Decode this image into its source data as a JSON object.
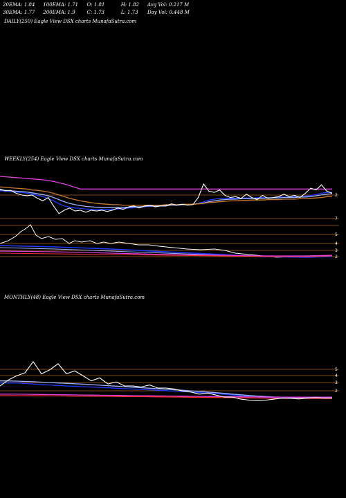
{
  "header": {
    "row1": [
      "20EMA: 1.84",
      "100EMA: 1.71",
      "O: 1.81",
      "H: 1.82",
      "Avg Vol: 0.217 M"
    ],
    "row2": [
      "30EMA: 1.77",
      "200EMA: 1.9",
      "C: 1.73",
      "L: 1.73",
      "Day Vol: 0.448  M"
    ]
  },
  "panels": {
    "daily": "DAILY(250) Eagle  View  DSX  charts MunafaSutra.com",
    "weekly": "WEEKLY(254) Eagle  View  DSX  charts MunafaSutra.com",
    "monthly": "MONTHLY(48) Eagle  View  DSX  charts MunafaSutra.com"
  },
  "colors": {
    "price": "#ffffff",
    "ema_blue": "#1e3cff",
    "ema_light": "#9fb4ff",
    "ema_orange": "#c87a2a",
    "ema_magenta": "#e040e0",
    "ema_red": "#ff3030",
    "level_line": "#b0601a"
  },
  "chart_data": [
    {
      "type": "line",
      "title": "WEEKLY(254) Eagle  View  DSX  charts MunafaSutra.com",
      "y_labels": [
        "2",
        "7",
        "5",
        "4",
        "3",
        "2"
      ],
      "series": [
        {
          "role": "price",
          "color": "#ffffff",
          "values": [
            2.0,
            1.96,
            1.97,
            1.9,
            1.86,
            1.84,
            1.86,
            1.78,
            1.72,
            1.8,
            1.6,
            1.42,
            1.5,
            1.55,
            1.48,
            1.5,
            1.45,
            1.5,
            1.48,
            1.5,
            1.47,
            1.5,
            1.55,
            1.52,
            1.58,
            1.6,
            1.55,
            1.6,
            1.62,
            1.58,
            1.6,
            1.6,
            1.65,
            1.62,
            1.64,
            1.62,
            1.63,
            1.8,
            2.12,
            1.95,
            1.92,
            1.98,
            1.85,
            1.8,
            1.82,
            1.78,
            1.88,
            1.8,
            1.75,
            1.85,
            1.78,
            1.8,
            1.82,
            1.88,
            1.82,
            1.85,
            1.8,
            1.9,
            2.02,
            1.98,
            2.1,
            1.95,
            1.9
          ]
        },
        {
          "role": "ema",
          "color": "#1e3cff",
          "values": [
            1.96,
            1.95,
            1.94,
            1.93,
            1.92,
            1.9,
            1.88,
            1.85,
            1.82,
            1.78,
            1.72,
            1.65,
            1.6,
            1.57,
            1.55,
            1.54,
            1.53,
            1.52,
            1.52,
            1.52,
            1.52,
            1.52,
            1.53,
            1.54,
            1.55,
            1.56,
            1.57,
            1.58,
            1.59,
            1.6,
            1.6,
            1.61,
            1.62,
            1.62,
            1.63,
            1.63,
            1.64,
            1.66,
            1.7,
            1.74,
            1.76,
            1.78,
            1.78,
            1.78,
            1.78,
            1.78,
            1.79,
            1.79,
            1.79,
            1.8,
            1.8,
            1.8,
            1.81,
            1.81,
            1.81,
            1.82,
            1.82,
            1.83,
            1.85,
            1.87,
            1.9,
            1.92,
            1.92
          ]
        },
        {
          "role": "ema",
          "color": "#9fb4ff",
          "values": [
            1.98,
            1.97,
            1.96,
            1.95,
            1.94,
            1.93,
            1.91,
            1.89,
            1.87,
            1.84,
            1.8,
            1.75,
            1.7,
            1.66,
            1.63,
            1.61,
            1.59,
            1.58,
            1.57,
            1.56,
            1.56,
            1.56,
            1.56,
            1.57,
            1.57,
            1.58,
            1.58,
            1.59,
            1.6,
            1.6,
            1.61,
            1.61,
            1.62,
            1.62,
            1.63,
            1.63,
            1.64,
            1.65,
            1.67,
            1.7,
            1.72,
            1.74,
            1.75,
            1.76,
            1.76,
            1.77,
            1.77,
            1.78,
            1.78,
            1.78,
            1.79,
            1.79,
            1.79,
            1.8,
            1.8,
            1.8,
            1.81,
            1.81,
            1.82,
            1.84,
            1.86,
            1.88,
            1.89
          ]
        },
        {
          "role": "ema",
          "color": "#c87a2a",
          "values": [
            2.05,
            2.04,
            2.03,
            2.02,
            2.01,
            2.0,
            1.98,
            1.97,
            1.95,
            1.93,
            1.9,
            1.86,
            1.82,
            1.78,
            1.75,
            1.72,
            1.7,
            1.68,
            1.66,
            1.65,
            1.64,
            1.63,
            1.63,
            1.62,
            1.62,
            1.62,
            1.62,
            1.62,
            1.62,
            1.62,
            1.62,
            1.63,
            1.63,
            1.63,
            1.64,
            1.64,
            1.64,
            1.65,
            1.66,
            1.68,
            1.69,
            1.7,
            1.71,
            1.72,
            1.72,
            1.73,
            1.73,
            1.74,
            1.74,
            1.74,
            1.75,
            1.75,
            1.75,
            1.76,
            1.76,
            1.76,
            1.77,
            1.77,
            1.78,
            1.79,
            1.8,
            1.82,
            1.83
          ]
        },
        {
          "role": "ema",
          "color": "#e040e0",
          "values": [
            2.3,
            2.29,
            2.28,
            2.27,
            2.26,
            2.25,
            2.24,
            2.23,
            2.22,
            2.2,
            2.18,
            2.15,
            2.12,
            2.08,
            2.04,
            2.0,
            2.0,
            2.0,
            2.0,
            2.0,
            2.0,
            2.0,
            2.0,
            2.0,
            2.0,
            2.0,
            2.0,
            2.0,
            2.0,
            2.0,
            2.0,
            2.0,
            2.0,
            2.0,
            2.0,
            2.0,
            2.0,
            2.0,
            2.0,
            2.0,
            2.0,
            2.0,
            2.0,
            2.0,
            2.0,
            2.0,
            2.0,
            2.0,
            2.0,
            2.0,
            2.0,
            2.0,
            2.0,
            2.0,
            2.0,
            2.0,
            2.0,
            2.0,
            2.0,
            2.0,
            2.0,
            2.0,
            2.0
          ]
        }
      ]
    },
    {
      "type": "line",
      "title": "MONTHLY(48) Eagle  View  DSX  charts MunafaSutra.com",
      "y_labels": [
        "5",
        "4",
        "3",
        "2"
      ],
      "series": [
        {
          "role": "price",
          "color": "#ffffff",
          "values": [
            3.0,
            3.6,
            4.0,
            4.3,
            5.4,
            4.2,
            4.6,
            5.2,
            4.2,
            4.5,
            4.0,
            3.5,
            3.8,
            3.2,
            3.4,
            3.0,
            3.0,
            2.9,
            3.1,
            2.8,
            2.8,
            2.7,
            2.5,
            2.4,
            2.2,
            2.3,
            2.1,
            1.9,
            1.9,
            1.7,
            1.6,
            1.55,
            1.6,
            1.7,
            1.8,
            1.78,
            1.72,
            1.8,
            1.85,
            1.8,
            1.8
          ]
        },
        {
          "role": "ema",
          "color": "#1e3cff",
          "values": [
            3.3,
            3.3,
            3.3,
            3.25,
            3.2,
            3.15,
            3.1,
            3.05,
            3.0,
            2.97,
            2.93,
            2.9,
            2.86,
            2.82,
            2.78,
            2.74,
            2.7,
            2.66,
            2.62,
            2.58,
            2.54,
            2.5,
            2.45,
            2.4,
            2.35,
            2.3,
            2.25,
            2.18,
            2.1,
            2.02,
            1.95,
            1.9,
            1.85,
            1.82,
            1.8,
            1.8,
            1.79,
            1.79,
            1.8,
            1.8,
            1.8
          ]
        },
        {
          "role": "ema",
          "color": "#9fb4ff",
          "values": [
            3.5,
            3.5,
            3.48,
            3.45,
            3.42,
            3.38,
            3.35,
            3.3,
            3.26,
            3.22,
            3.18,
            3.13,
            3.08,
            3.03,
            2.98,
            2.93,
            2.88,
            2.83,
            2.78,
            2.73,
            2.68,
            2.63,
            2.58,
            2.52,
            2.46,
            2.4,
            2.34,
            2.27,
            2.2,
            2.13,
            2.06,
            2.0,
            1.96,
            1.92,
            1.9,
            1.88,
            1.87,
            1.86,
            1.86,
            1.86,
            1.86
          ]
        },
        {
          "role": "ema",
          "color": "#e040e0",
          "values": [
            2.2,
            2.2,
            2.19,
            2.18,
            2.17,
            2.16,
            2.15,
            2.14,
            2.13,
            2.12,
            2.11,
            2.1,
            2.09,
            2.08,
            2.07,
            2.06,
            2.05,
            2.04,
            2.03,
            2.02,
            2.01,
            2.0,
            1.99,
            1.98,
            1.97,
            1.96,
            1.95,
            1.95,
            1.94,
            1.93,
            1.92,
            1.92,
            1.91,
            1.9,
            1.9,
            1.9,
            1.9,
            1.9,
            1.9,
            1.9,
            1.9
          ]
        },
        {
          "role": "ema",
          "color": "#ff3030",
          "values": [
            2.05,
            2.05,
            2.04,
            2.04,
            2.03,
            2.03,
            2.02,
            2.02,
            2.01,
            2.0,
            2.0,
            1.99,
            1.98,
            1.98,
            1.97,
            1.96,
            1.95,
            1.95,
            1.94,
            1.93,
            1.92,
            1.91,
            1.9,
            1.89,
            1.88,
            1.87,
            1.86,
            1.85,
            1.84,
            1.83,
            1.82,
            1.81,
            1.8,
            1.79,
            1.78,
            1.78,
            1.77,
            1.77,
            1.77,
            1.77,
            1.77
          ]
        }
      ]
    }
  ]
}
